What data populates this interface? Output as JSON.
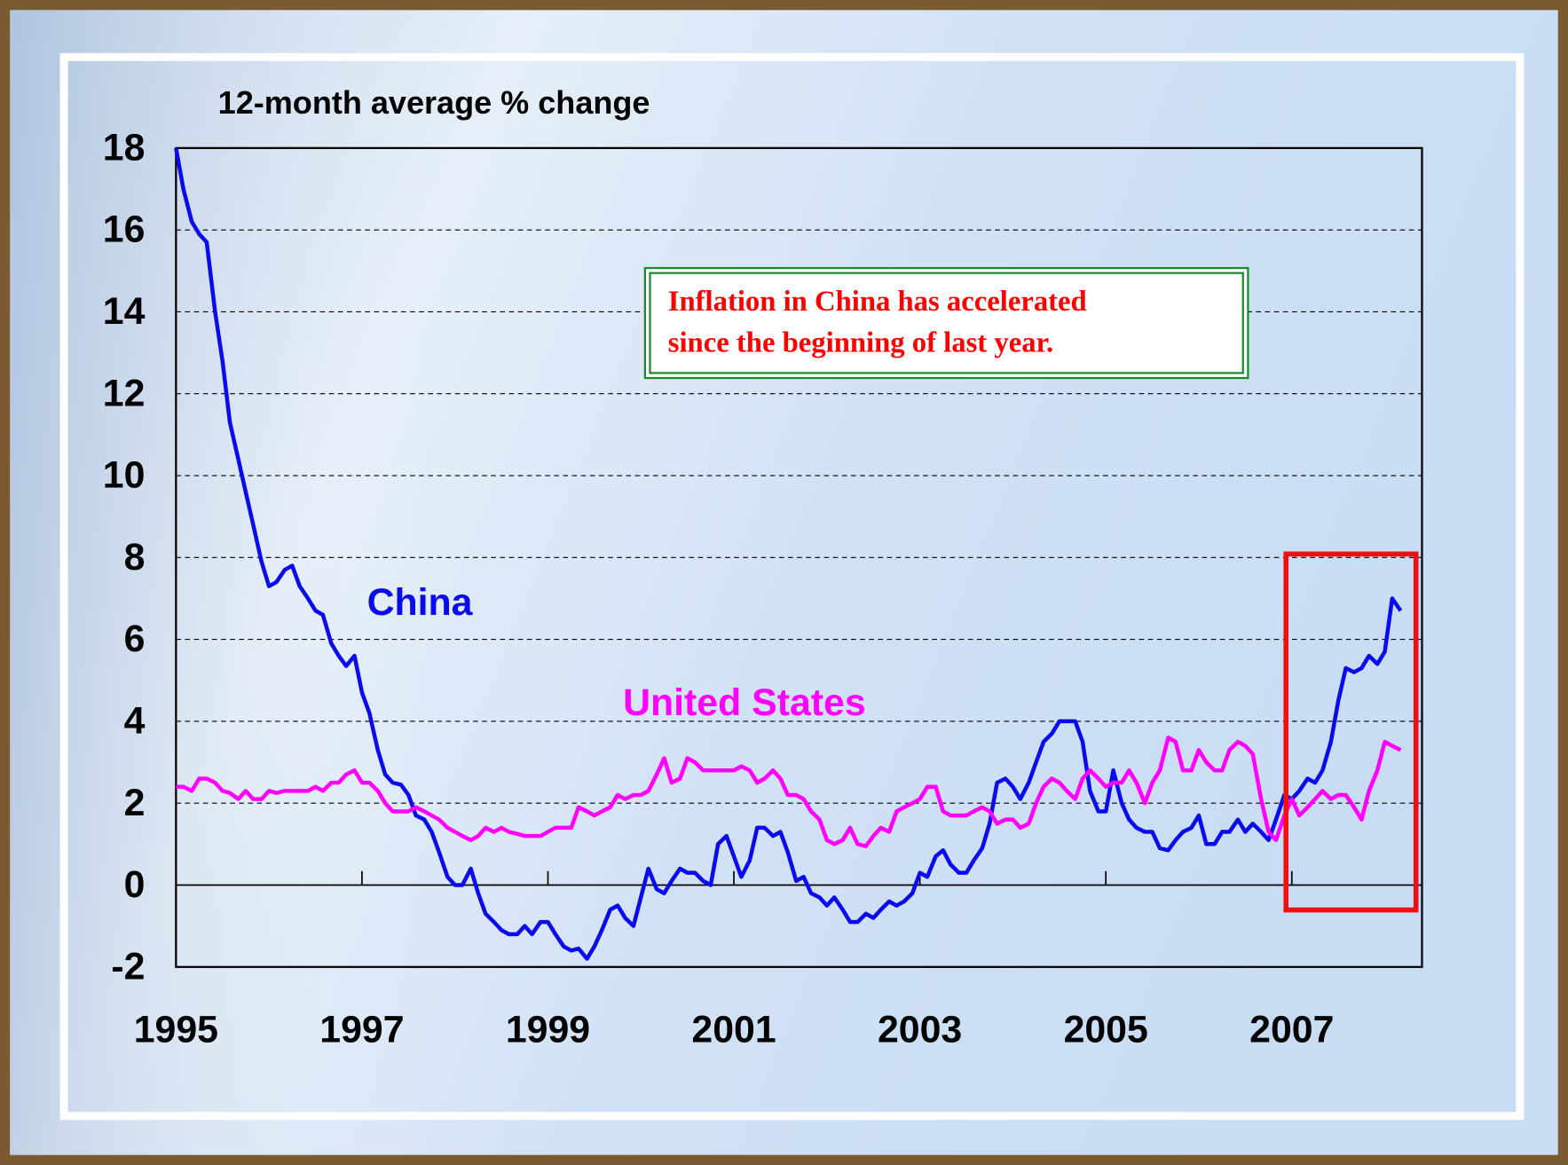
{
  "chart_data": {
    "type": "line",
    "title": "12-month average % change",
    "annotation": [
      "Inflation in China has accelerated",
      "since the beginning of last year."
    ],
    "x": [
      1995,
      1995.08,
      1995.17,
      1995.25,
      1995.33,
      1995.42,
      1995.5,
      1995.58,
      1995.67,
      1995.75,
      1995.83,
      1995.92,
      1996,
      1996.08,
      1996.17,
      1996.25,
      1996.33,
      1996.42,
      1996.5,
      1996.58,
      1996.67,
      1996.75,
      1996.83,
      1996.92,
      1997,
      1997.08,
      1997.17,
      1997.25,
      1997.33,
      1997.42,
      1997.5,
      1997.58,
      1997.67,
      1997.75,
      1997.83,
      1997.92,
      1998,
      1998.08,
      1998.17,
      1998.25,
      1998.33,
      1998.42,
      1998.5,
      1998.58,
      1998.67,
      1998.75,
      1998.83,
      1998.92,
      1999,
      1999.08,
      1999.17,
      1999.25,
      1999.33,
      1999.42,
      1999.5,
      1999.58,
      1999.67,
      1999.75,
      1999.83,
      1999.92,
      2000,
      2000.08,
      2000.17,
      2000.25,
      2000.33,
      2000.42,
      2000.5,
      2000.58,
      2000.67,
      2000.75,
      2000.83,
      2000.92,
      2001,
      2001.08,
      2001.17,
      2001.25,
      2001.33,
      2001.42,
      2001.5,
      2001.58,
      2001.67,
      2001.75,
      2001.83,
      2001.92,
      2002,
      2002.08,
      2002.17,
      2002.25,
      2002.33,
      2002.42,
      2002.5,
      2002.58,
      2002.67,
      2002.75,
      2002.83,
      2002.92,
      2003,
      2003.08,
      2003.17,
      2003.25,
      2003.33,
      2003.42,
      2003.5,
      2003.58,
      2003.67,
      2003.75,
      2003.83,
      2003.92,
      2004,
      2004.08,
      2004.17,
      2004.25,
      2004.33,
      2004.42,
      2004.5,
      2004.58,
      2004.67,
      2004.75,
      2004.83,
      2004.92,
      2005,
      2005.08,
      2005.17,
      2005.25,
      2005.33,
      2005.42,
      2005.5,
      2005.58,
      2005.67,
      2005.75,
      2005.83,
      2005.92,
      2006,
      2006.08,
      2006.17,
      2006.25,
      2006.33,
      2006.42,
      2006.5,
      2006.58,
      2006.67,
      2006.75,
      2006.83,
      2006.92,
      2007,
      2007.08,
      2007.17,
      2007.25,
      2007.33,
      2007.42,
      2007.5,
      2007.58,
      2007.67,
      2007.75,
      2007.83,
      2007.92,
      2008,
      2008.08,
      2008.17
    ],
    "series": [
      {
        "name": "China",
        "color": "#0a0aee",
        "values": [
          18,
          17,
          16.2,
          15.9,
          15.7,
          14,
          12.8,
          11.3,
          10.4,
          9.6,
          8.8,
          7.9,
          7.3,
          7.4,
          7.7,
          7.8,
          7.3,
          7.0,
          6.7,
          6.6,
          5.9,
          5.6,
          5.35,
          5.6,
          4.7,
          4.2,
          3.3,
          2.7,
          2.5,
          2.45,
          2.2,
          1.7,
          1.6,
          1.3,
          0.8,
          0.2,
          0,
          0,
          0.4,
          -0.2,
          -0.7,
          -0.9,
          -1.1,
          -1.2,
          -1.2,
          -1.0,
          -1.2,
          -0.9,
          -0.9,
          -1.2,
          -1.5,
          -1.6,
          -1.55,
          -1.8,
          -1.5,
          -1.1,
          -0.6,
          -0.5,
          -0.8,
          -1.0,
          -0.3,
          0.4,
          -0.1,
          -0.2,
          0.1,
          0.4,
          0.3,
          0.3,
          0.1,
          0,
          1.0,
          1.2,
          0.7,
          0.2,
          0.6,
          1.4,
          1.4,
          1.2,
          1.3,
          0.8,
          0.1,
          0.2,
          -0.2,
          -0.3,
          -0.5,
          -0.3,
          -0.6,
          -0.9,
          -0.9,
          -0.7,
          -0.8,
          -0.6,
          -0.4,
          -0.5,
          -0.4,
          -0.2,
          0.3,
          0.2,
          0.7,
          0.85,
          0.5,
          0.3,
          0.3,
          0.6,
          0.9,
          1.5,
          2.5,
          2.6,
          2.4,
          2.1,
          2.5,
          3.0,
          3.5,
          3.7,
          4.0,
          4.0,
          4.0,
          3.5,
          2.3,
          1.8,
          1.8,
          2.8,
          2.0,
          1.6,
          1.4,
          1.3,
          1.3,
          0.9,
          0.85,
          1.1,
          1.3,
          1.4,
          1.7,
          1.0,
          1.0,
          1.3,
          1.3,
          1.6,
          1.3,
          1.5,
          1.3,
          1.1,
          1.6,
          2.2,
          2.1,
          2.3,
          2.6,
          2.5,
          2.8,
          3.5,
          4.5,
          5.3,
          5.2,
          5.3,
          5.6,
          5.4,
          5.7,
          7.0,
          6.7
        ]
      },
      {
        "name": "United States",
        "color": "#ff00ff",
        "values": [
          2.4,
          2.4,
          2.3,
          2.6,
          2.6,
          2.5,
          2.3,
          2.25,
          2.1,
          2.3,
          2.1,
          2.1,
          2.3,
          2.25,
          2.3,
          2.3,
          2.3,
          2.3,
          2.4,
          2.3,
          2.5,
          2.5,
          2.7,
          2.8,
          2.5,
          2.5,
          2.3,
          2.0,
          1.8,
          1.8,
          1.8,
          1.9,
          1.8,
          1.7,
          1.6,
          1.4,
          1.3,
          1.2,
          1.1,
          1.2,
          1.4,
          1.3,
          1.4,
          1.3,
          1.25,
          1.2,
          1.2,
          1.2,
          1.3,
          1.4,
          1.4,
          1.4,
          1.9,
          1.8,
          1.7,
          1.8,
          1.9,
          2.2,
          2.1,
          2.2,
          2.2,
          2.3,
          2.7,
          3.1,
          2.5,
          2.6,
          3.1,
          3.0,
          2.8,
          2.8,
          2.8,
          2.8,
          2.8,
          2.9,
          2.8,
          2.5,
          2.6,
          2.8,
          2.6,
          2.2,
          2.2,
          2.1,
          1.8,
          1.6,
          1.1,
          1.0,
          1.1,
          1.4,
          1.0,
          0.95,
          1.2,
          1.4,
          1.3,
          1.8,
          1.9,
          2.0,
          2.1,
          2.4,
          2.4,
          1.8,
          1.7,
          1.7,
          1.7,
          1.8,
          1.9,
          1.8,
          1.5,
          1.6,
          1.6,
          1.4,
          1.5,
          2.0,
          2.4,
          2.6,
          2.5,
          2.3,
          2.1,
          2.6,
          2.8,
          2.6,
          2.4,
          2.5,
          2.5,
          2.8,
          2.5,
          2.0,
          2.5,
          2.8,
          3.6,
          3.5,
          2.8,
          2.8,
          3.3,
          3.0,
          2.8,
          2.8,
          3.3,
          3.5,
          3.4,
          3.2,
          2.1,
          1.3,
          1.1,
          1.7,
          2.1,
          1.7,
          1.9,
          2.1,
          2.3,
          2.1,
          2.2,
          2.2,
          1.9,
          1.6,
          2.3,
          2.8,
          3.5,
          3.4,
          3.3
        ]
      }
    ],
    "xlim": [
      1995,
      2008.4
    ],
    "xticks": [
      1995,
      1997,
      1999,
      2001,
      2003,
      2005,
      2007
    ],
    "ylim": [
      -2,
      18
    ],
    "yticks": [
      -2,
      0,
      2,
      4,
      6,
      8,
      10,
      12,
      14,
      16,
      18
    ],
    "grid": true
  }
}
